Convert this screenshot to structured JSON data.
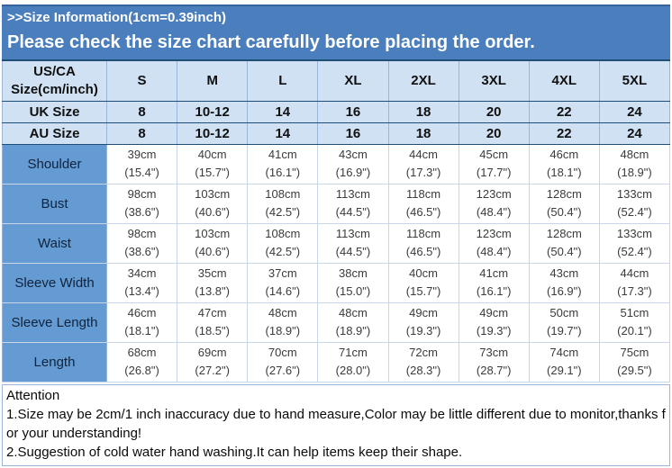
{
  "banner": {
    "title": ">>Size Information(1cm=0.39inch)",
    "warning": "Please check the size chart carefully before placing the order."
  },
  "table": {
    "corner_label": "US/CA Size(cm/inch)",
    "columns": [
      "S",
      "M",
      "L",
      "XL",
      "2XL",
      "3XL",
      "4XL",
      "5XL"
    ],
    "size_rows": [
      {
        "label": "UK Size",
        "values": [
          "8",
          "10-12",
          "14",
          "16",
          "18",
          "20",
          "22",
          "24"
        ]
      },
      {
        "label": "AU Size",
        "values": [
          "8",
          "10-12",
          "14",
          "16",
          "18",
          "20",
          "22",
          "24"
        ]
      }
    ],
    "measurement_rows": [
      {
        "label": "Shoulder",
        "cm": [
          "39cm",
          "40cm",
          "41cm",
          "43cm",
          "44cm",
          "45cm",
          "46cm",
          "48cm"
        ],
        "inch": [
          "(15.4\")",
          "(15.7\")",
          "(16.1\")",
          "(16.9\")",
          "(17.3\")",
          "(17.7\")",
          "(18.1\")",
          "(18.9\")"
        ]
      },
      {
        "label": "Bust",
        "cm": [
          "98cm",
          "103cm",
          "108cm",
          "113cm",
          "118cm",
          "123cm",
          "128cm",
          "133cm"
        ],
        "inch": [
          "(38.6\")",
          "(40.6\")",
          "(42.5\")",
          "(44.5\")",
          "(46.5\")",
          "(48.4\")",
          "(50.4\")",
          "(52.4\")"
        ]
      },
      {
        "label": "Waist",
        "cm": [
          "98cm",
          "103cm",
          "108cm",
          "113cm",
          "118cm",
          "123cm",
          "128cm",
          "133cm"
        ],
        "inch": [
          "(38.6\")",
          "(40.6\")",
          "(42.5\")",
          "(44.5\")",
          "(46.5\")",
          "(48.4\")",
          "(50.4\")",
          "(52.4\")"
        ]
      },
      {
        "label": "Sleeve Width",
        "cm": [
          "34cm",
          "35cm",
          "37cm",
          "38cm",
          "40cm",
          "41cm",
          "43cm",
          "44cm"
        ],
        "inch": [
          "(13.4\")",
          "(13.8\")",
          "(14.6\")",
          "(15.0\")",
          "(15.7\")",
          "(16.1\")",
          "(16.9\")",
          "(17.3\")"
        ]
      },
      {
        "label": "Sleeve Length",
        "cm": [
          "46cm",
          "47cm",
          "48cm",
          "48cm",
          "49cm",
          "49cm",
          "50cm",
          "51cm"
        ],
        "inch": [
          "(18.1\")",
          "(18.5\")",
          "(18.9\")",
          "(18.9\")",
          "(19.3\")",
          "(19.3\")",
          "(19.7\")",
          "(20.1\")"
        ]
      },
      {
        "label": "Length",
        "cm": [
          "68cm",
          "69cm",
          "70cm",
          "71cm",
          "72cm",
          "73cm",
          "74cm",
          "75cm"
        ],
        "inch": [
          "(26.8\")",
          "(27.2\")",
          "(27.6\")",
          "(28.0\")",
          "(28.3\")",
          "(28.7\")",
          "(29.1\")",
          "(29.5\")"
        ]
      }
    ]
  },
  "attention": {
    "title": "Attention",
    "notes": [
      "1.Size may be 2cm/1 inch inaccuracy due to hand measure,Color may be little different due to monitor,thanks for your understanding!",
      "2.Suggestion of cold water hand washing.It can help items keep their shape."
    ]
  },
  "colors": {
    "banner_bg": "#4a7ebc",
    "header_bg": "#cfe1f3",
    "label_bg": "#649bd3",
    "border_dark": "#1f4e79",
    "border_light": "#9ab7d9",
    "banner_text": "#ffffff"
  }
}
